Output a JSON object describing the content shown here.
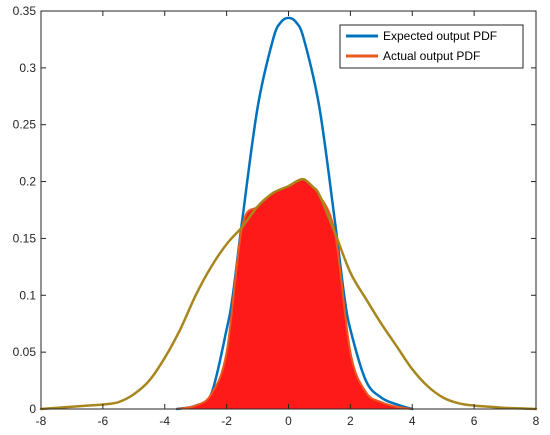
{
  "chart_data": {
    "type": "area",
    "title": "",
    "xlabel": "",
    "ylabel": "",
    "xlim": [
      -8,
      8
    ],
    "ylim": [
      0,
      0.35
    ],
    "xticks": [
      -8,
      -6,
      -4,
      -2,
      0,
      2,
      4,
      6,
      8
    ],
    "yticks": [
      0,
      0.05,
      0.1,
      0.15,
      0.2,
      0.25,
      0.3,
      0.35
    ],
    "xtick_labels": [
      "-8",
      "-6",
      "-4",
      "-2",
      "0",
      "2",
      "4",
      "6",
      "8"
    ],
    "ytick_labels": [
      "0",
      "0.05",
      "0.1",
      "0.15",
      "0.2",
      "0.25",
      "0.3",
      "0.35"
    ],
    "grid": false,
    "legend_position": "top-right",
    "legend": [
      {
        "label": "Expected output PDF",
        "color": "#0072BD"
      },
      {
        "label": "Actual output PDF",
        "color": "#EA5A1E"
      }
    ],
    "series": [
      {
        "name": "Expected output PDF",
        "style": "line",
        "color": "#0072BD",
        "x": [
          -3.6,
          -3.0,
          -2.5,
          -2.0,
          -1.8,
          -1.5,
          -1.0,
          -0.5,
          -0.25,
          0,
          0.25,
          0.5,
          1.0,
          1.5,
          1.8,
          2.0,
          2.5,
          3.0,
          3.5,
          4.0
        ],
        "y": [
          0.0,
          0.003,
          0.013,
          0.07,
          0.1,
          0.165,
          0.265,
          0.325,
          0.34,
          0.344,
          0.34,
          0.325,
          0.265,
          0.165,
          0.1,
          0.07,
          0.025,
          0.01,
          0.004,
          0.0
        ]
      },
      {
        "name": "Actual output PDF",
        "style": "filled-area",
        "color": "#EA5A1E",
        "fill": "#FF1A1A",
        "x": [
          -3.6,
          -3.0,
          -2.5,
          -2.0,
          -1.5,
          -1.0,
          -0.5,
          0,
          0.25,
          0.5,
          0.8,
          1.0,
          1.5,
          2.0,
          2.5,
          3.0,
          3.5,
          4.0
        ],
        "y": [
          0.0,
          0.003,
          0.013,
          0.05,
          0.16,
          0.178,
          0.19,
          0.196,
          0.2,
          0.202,
          0.195,
          0.188,
          0.155,
          0.05,
          0.015,
          0.006,
          0.002,
          0.0
        ]
      },
      {
        "name": "",
        "style": "line",
        "color": "#A8861E",
        "x": [
          -8,
          -7.5,
          -7.0,
          -6.5,
          -6.0,
          -5.5,
          -5.0,
          -4.5,
          -4.0,
          -3.5,
          -3.0,
          -2.5,
          -2.0,
          -1.5,
          -1.0,
          -0.5,
          0,
          0.25,
          0.5,
          0.8,
          1.0,
          1.5,
          2.0,
          2.5,
          3.0,
          3.5,
          4.0,
          4.5,
          5.0,
          5.5,
          6.0,
          6.5,
          7.0,
          7.5,
          8.0
        ],
        "y": [
          0.0,
          0.001,
          0.002,
          0.003,
          0.004,
          0.006,
          0.013,
          0.025,
          0.045,
          0.07,
          0.1,
          0.125,
          0.145,
          0.16,
          0.178,
          0.19,
          0.196,
          0.2,
          0.202,
          0.195,
          0.188,
          0.155,
          0.12,
          0.097,
          0.075,
          0.055,
          0.035,
          0.02,
          0.01,
          0.005,
          0.003,
          0.002,
          0.001,
          0.0005,
          0.0
        ]
      }
    ]
  }
}
